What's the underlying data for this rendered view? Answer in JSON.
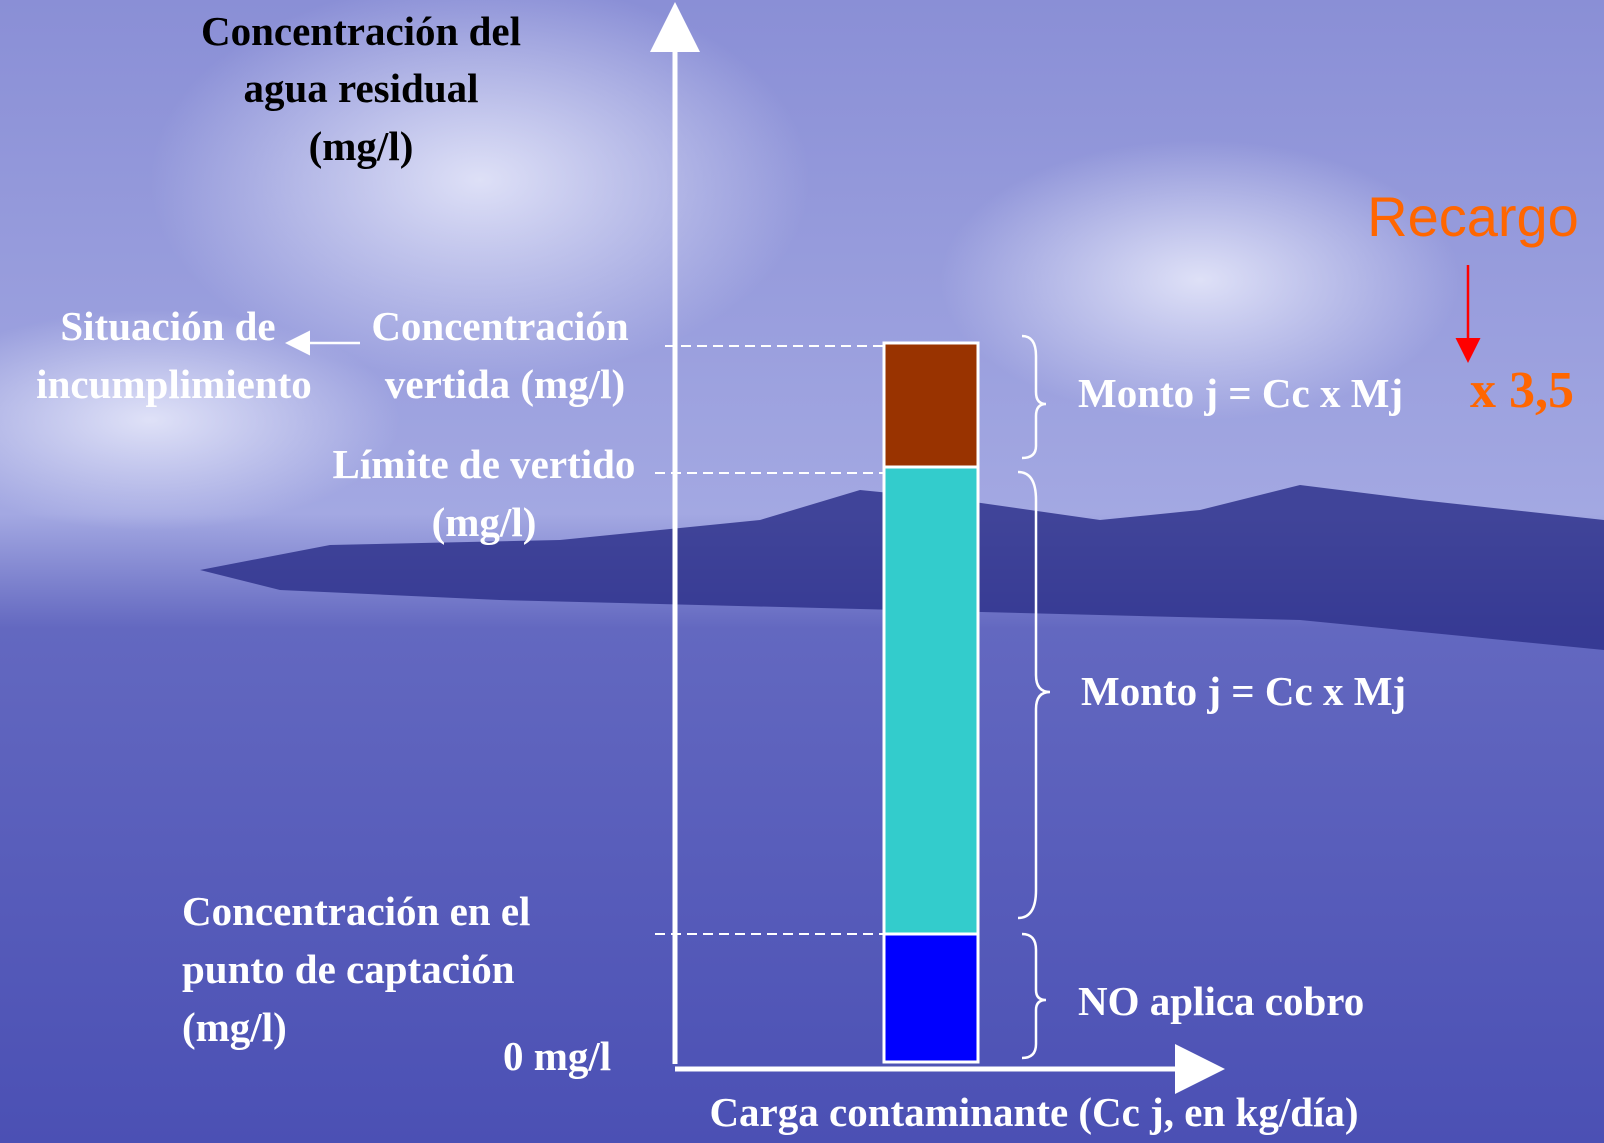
{
  "axis": {
    "y_title": [
      "Concentración del",
      "agua residual",
      "(mg/l)"
    ],
    "x_title": "Carga contaminante (Cc j, en kg/día)",
    "origin": "0 mg/l"
  },
  "non_compliance": [
    "Situación de",
    "incumplimiento"
  ],
  "levels": [
    {
      "label": [
        "Concentración",
        "vertida (mg/l)"
      ]
    },
    {
      "label": [
        "Límite de vertido",
        "(mg/l)"
      ]
    },
    {
      "label": [
        "Concentración en el",
        "punto de captación",
        "(mg/l)"
      ]
    }
  ],
  "brackets": [
    {
      "text": "Monto j = Cc x Mj"
    },
    {
      "text": "Monto j = Cc x Mj"
    },
    {
      "text": "NO aplica cobro"
    }
  ],
  "surcharge": {
    "label": "Recargo",
    "factor": "x 3,5"
  }
}
